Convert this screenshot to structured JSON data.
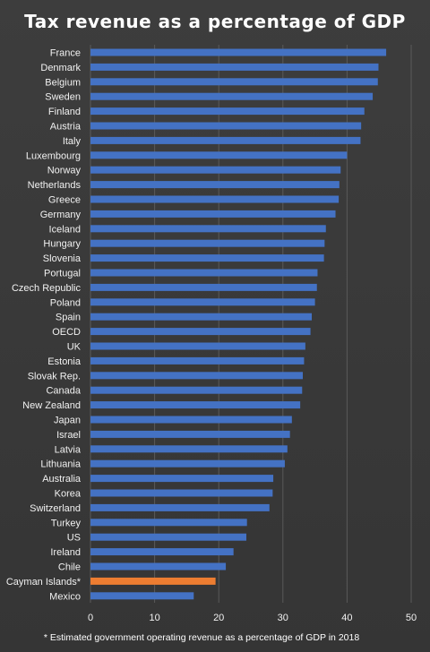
{
  "chart_data": {
    "type": "bar",
    "orientation": "horizontal",
    "title": "Tax revenue as a percentage of GDP",
    "xlabel": "",
    "ylabel": "",
    "xlim": [
      0,
      50
    ],
    "ticks": [
      "0",
      "10",
      "20",
      "30",
      "40",
      "50"
    ],
    "grid": true,
    "categories": [
      "France",
      "Denmark",
      "Belgium",
      "Sweden",
      "Finland",
      "Austria",
      "Italy",
      "Luxembourg",
      "Norway",
      "Netherlands",
      "Greece",
      "Germany",
      "Iceland",
      "Hungary",
      "Slovenia",
      "Portugal",
      "Czech Republic",
      "Poland",
      "Spain",
      "OECD",
      "UK",
      "Estonia",
      "Slovak Rep.",
      "Canada",
      "New Zealand",
      "Japan",
      "Israel",
      "Latvia",
      "Lithuania",
      "Australia",
      "Korea",
      "Switzerland",
      "Turkey",
      "US",
      "Ireland",
      "Chile",
      "Cayman Islands*",
      "Mexico"
    ],
    "values": [
      46.1,
      44.9,
      44.8,
      44.0,
      42.7,
      42.2,
      42.1,
      40.0,
      39.0,
      38.8,
      38.7,
      38.2,
      36.7,
      36.5,
      36.4,
      35.4,
      35.3,
      35.0,
      34.5,
      34.3,
      33.5,
      33.3,
      33.1,
      33.0,
      32.7,
      31.4,
      31.1,
      30.7,
      30.3,
      28.5,
      28.4,
      27.9,
      24.4,
      24.3,
      22.3,
      21.1,
      19.5,
      16.1
    ],
    "colors": {
      "default": "#4472c4",
      "highlight": "#ed7d31",
      "highlight_category": "Cayman Islands*"
    },
    "footnote": "* Estimated government operating revenue as a percentage of GDP in 2018"
  }
}
